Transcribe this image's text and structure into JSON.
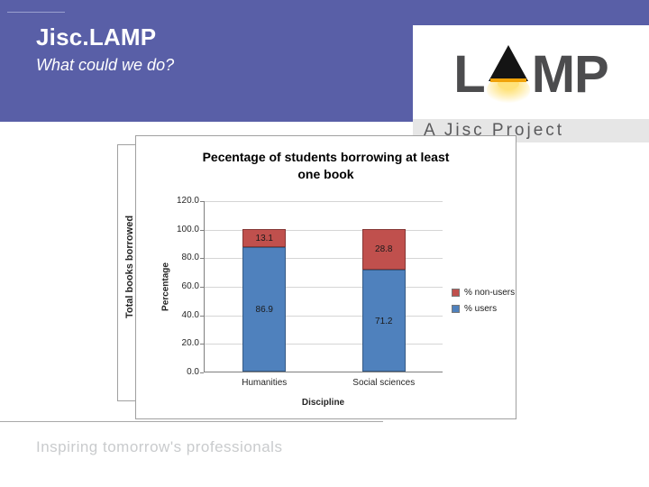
{
  "header": {
    "title": "Jisc.LAMP",
    "subtitle": "What could we do?"
  },
  "logo": {
    "letter_left": "L",
    "letters_right": "MP",
    "subtext": "A Jisc Project"
  },
  "background_chart": {
    "ylabel": "Total books borrowed"
  },
  "chart_data": {
    "type": "bar",
    "stacked": true,
    "title": "Pecentage of students borrowing at least one book",
    "categories": [
      "Humanities",
      "Social sciences"
    ],
    "series": [
      {
        "name": "% users",
        "color": "#4f81bd",
        "values": [
          86.9,
          71.2
        ]
      },
      {
        "name": "% non-users",
        "color": "#c0504d",
        "values": [
          13.1,
          28.8
        ]
      }
    ],
    "legend_order": [
      "% non-users",
      "% users"
    ],
    "xlabel": "Discipline",
    "ylabel": "Percentage",
    "ylim": [
      0,
      120
    ],
    "ytick_labels": [
      "0.0",
      "20.0",
      "40.0",
      "60.0",
      "80.0",
      "100.0",
      "120.0"
    ],
    "grid": true,
    "legend_position": "right"
  },
  "footer": {
    "tagline": "Inspiring tomorrow's professionals"
  },
  "colors": {
    "header_band": "#595fa7",
    "bar_blue": "#4f81bd",
    "bar_red": "#c0504d"
  }
}
